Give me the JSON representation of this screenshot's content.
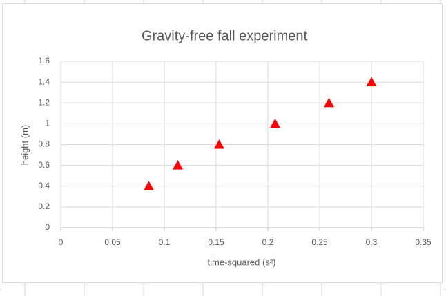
{
  "chart_data": {
    "type": "scatter",
    "title": "Gravity-free fall experiment",
    "x_label": "time-squared (s²)",
    "y_label": "height (m)",
    "x": [
      0.085,
      0.113,
      0.153,
      0.207,
      0.259,
      0.3
    ],
    "values": [
      0.4,
      0.6,
      0.8,
      1,
      1.2,
      1.4
    ],
    "color": "#ff0000",
    "marker": "triangle",
    "xlim": [
      0,
      0.35
    ],
    "xticks": [
      0,
      0.05,
      0.1,
      0.15,
      0.2,
      0.25,
      0.3,
      0.35
    ],
    "ylim": [
      0,
      1.6
    ],
    "yticks": [
      0,
      0.2,
      0.4,
      0.6,
      0.8,
      1,
      1.2,
      1.4,
      1.6
    ],
    "grid": true
  }
}
